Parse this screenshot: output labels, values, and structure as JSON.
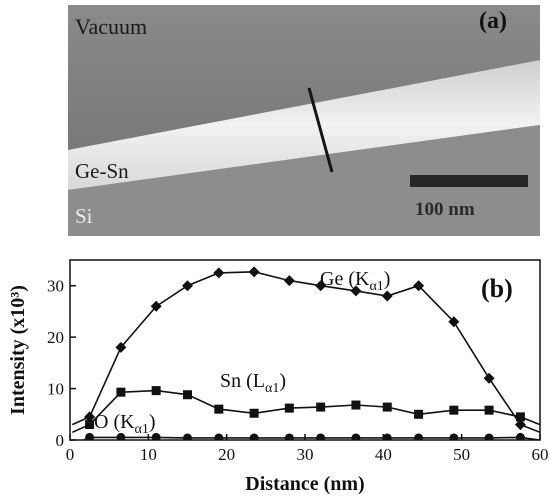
{
  "panel_a": {
    "label": "(a)",
    "regions": [
      "Vacuum",
      "Ge-Sn",
      "Si"
    ],
    "scale_bar": "100 nm"
  },
  "chart_data": {
    "type": "line",
    "panel_label": "(b)",
    "xlabel": "Distance (nm)",
    "ylabel": "Intensity (x10³)",
    "xlim": [
      0,
      60
    ],
    "ylim": [
      0,
      35
    ],
    "x_ticks": [
      0,
      10,
      20,
      30,
      40,
      50,
      60
    ],
    "y_ticks": [
      0,
      10,
      20,
      30
    ],
    "grid": false,
    "series": [
      {
        "name": "Ge (Kα1)",
        "label_main": "Ge (K",
        "label_sub": "α1",
        "label_end": ")",
        "marker": "diamond",
        "x": [
          2.5,
          6.5,
          11,
          15,
          19,
          23.5,
          28,
          32,
          36.5,
          40.5,
          44.5,
          49,
          53.5,
          57.5
        ],
        "y": [
          4.5,
          18,
          26,
          30,
          32.5,
          32.7,
          31,
          30,
          29,
          28,
          30,
          23,
          12,
          3
        ]
      },
      {
        "name": "Sn (Lα1)",
        "label_main": "Sn (L",
        "label_sub": "α1",
        "label_end": ")",
        "marker": "square",
        "x": [
          2.5,
          6.5,
          11,
          15,
          19,
          23.5,
          28,
          32,
          36.5,
          40.5,
          44.5,
          49,
          53.5,
          57.5
        ],
        "y": [
          3,
          9.3,
          9.6,
          8.8,
          6,
          5.2,
          6.2,
          6.4,
          6.8,
          6.4,
          5,
          5.8,
          5.8,
          4.5
        ]
      },
      {
        "name": "O (Kα1)",
        "label_main": "O (K",
        "label_sub": "α1",
        "label_end": ")",
        "marker": "circle",
        "x": [
          2.5,
          6.5,
          11,
          15,
          19,
          23.5,
          28,
          32,
          36.5,
          40.5,
          44.5,
          49,
          53.5,
          57.5
        ],
        "y": [
          0.5,
          0.5,
          0.5,
          0.4,
          0.4,
          0.4,
          0.4,
          0.4,
          0.4,
          0.4,
          0.4,
          0.4,
          0.4,
          0.5
        ]
      }
    ]
  }
}
